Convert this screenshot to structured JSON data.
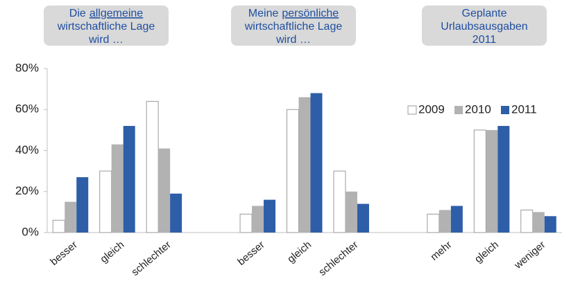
{
  "chart_data": {
    "type": "bar",
    "annotations": [
      {
        "lines": [
          [
            "Die",
            "allgemeine"
          ],
          [
            "wirtschaftliche Lage"
          ],
          [
            "wird …"
          ]
        ],
        "underline": [
          0,
          1
        ]
      },
      {
        "lines": [
          [
            "Meine",
            "persönliche"
          ],
          [
            "wirtschaftliche Lage"
          ],
          [
            "wird …"
          ]
        ],
        "underline": [
          0,
          1
        ]
      },
      {
        "lines": [
          [
            "Geplante"
          ],
          [
            "Urlaubsausgaben"
          ],
          [
            "2011"
          ]
        ]
      }
    ],
    "categories": [
      "besser",
      "gleich",
      "schlechter",
      null,
      "besser",
      "gleich",
      "schlechter",
      null,
      "mehr",
      "gleich",
      "weniger"
    ],
    "series": [
      {
        "name": "2009",
        "color": "#ffffff",
        "values": [
          6,
          30,
          64,
          null,
          9,
          60,
          30,
          null,
          9,
          50,
          11
        ]
      },
      {
        "name": "2010",
        "color": "#b2b2b2",
        "values": [
          15,
          43,
          41,
          null,
          13,
          66,
          20,
          null,
          11,
          50,
          10
        ]
      },
      {
        "name": "2011",
        "color": "#2e5ea8",
        "values": [
          27,
          52,
          19,
          null,
          16,
          68,
          14,
          null,
          13,
          52,
          8
        ]
      }
    ],
    "ylim": [
      0,
      80
    ],
    "yticks": [
      {
        "value": 0,
        "label": "0%"
      },
      {
        "value": 20,
        "label": "20%"
      },
      {
        "value": 40,
        "label": "40%"
      },
      {
        "value": 60,
        "label": "60%"
      },
      {
        "value": 80,
        "label": "80%"
      }
    ],
    "grid": false,
    "legend": "top right"
  }
}
